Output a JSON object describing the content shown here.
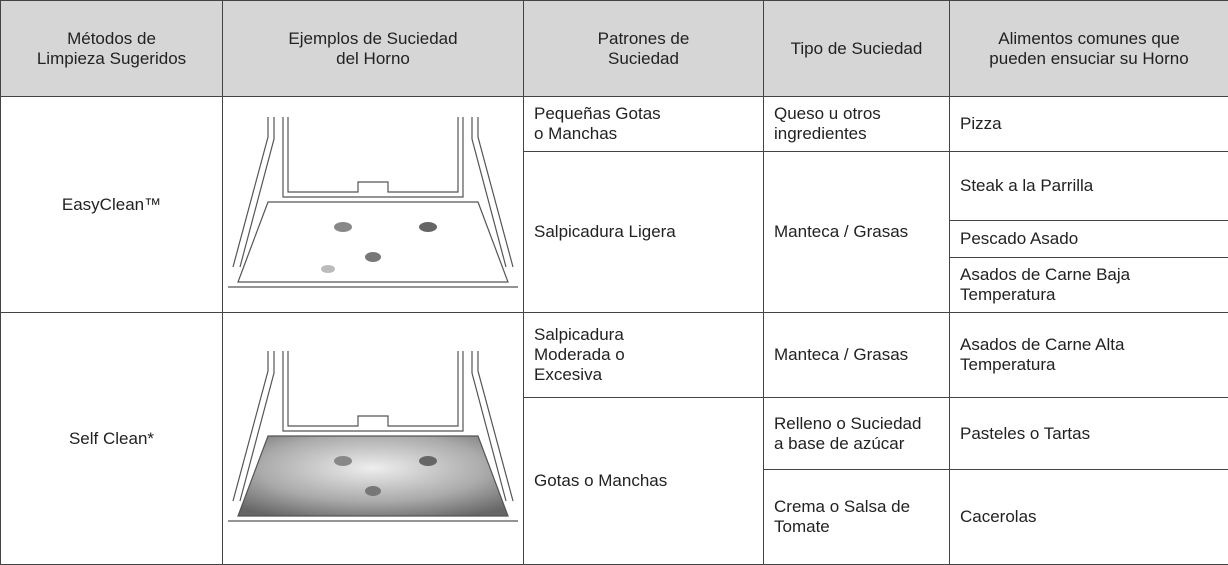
{
  "table": {
    "header": [
      "Métodos de\nLimpieza Sugeridos",
      "Ejemplos de Suciedad\ndel Horno",
      "Patrones de\nSuciedad",
      "Tipo de Suciedad",
      "Alimentos comunes que\npueden ensuciar su Horno"
    ],
    "rows": [
      [
        "EasyClean™",
        "Pequeñas Gotas\no Manchas",
        "Queso u otros\ningredientes",
        "Pizza"
      ],
      [
        "Salpicadura Ligera",
        "Manteca / Grasas",
        "Steak a la Parrilla"
      ],
      [
        "Pescado Asado"
      ],
      [
        "Asados de Carne Baja\nTemperatura"
      ],
      [
        "Self Clean*",
        "Salpicadura\nModerada o\nExcesiva",
        "Manteca / Grasas",
        "Asados de Carne Alta\nTemperatura"
      ],
      [
        "Gotas o Manchas",
        "Relleno o Suciedad\na base de azúcar",
        "Pasteles o Tartas"
      ],
      [
        "Crema o Salsa de\nTomate",
        "Cacerolas"
      ]
    ]
  }
}
